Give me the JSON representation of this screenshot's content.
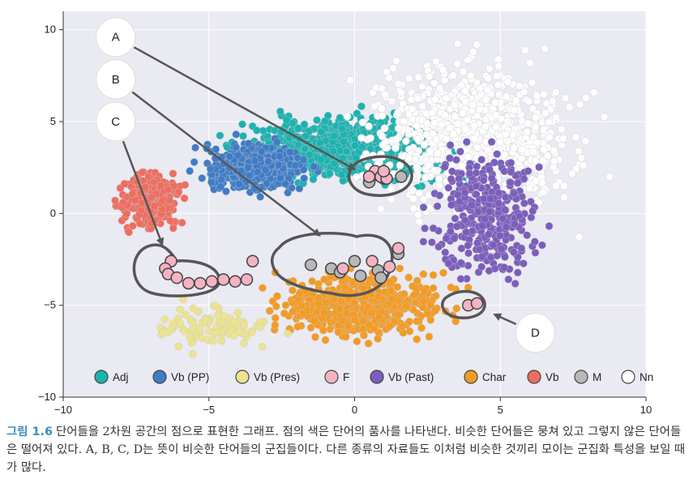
{
  "chart_data": {
    "type": "scatter",
    "title": "",
    "xlabel": "",
    "ylabel": "",
    "xlim": [
      -10,
      10
    ],
    "ylim": [
      -10,
      11
    ],
    "xticks": [
      -10,
      -5,
      0,
      5,
      10
    ],
    "yticks": [
      -10,
      -5,
      0,
      5,
      10
    ],
    "grid": true,
    "legend_position": "bottom",
    "series": [
      {
        "name": "Adj",
        "color": "#1bb3b0"
      },
      {
        "name": "Vb (PP)",
        "color": "#3f7cc6"
      },
      {
        "name": "Vb (Pres)",
        "color": "#ece38f"
      },
      {
        "name": "F",
        "color": "#f3b3c3"
      },
      {
        "name": "Vb (Past)",
        "color": "#7b5ebc"
      },
      {
        "name": "Char",
        "color": "#f39b23"
      },
      {
        "name": "Vb",
        "color": "#ee6d5f"
      },
      {
        "name": "M",
        "color": "#b8b8b8"
      },
      {
        "name": "Nn",
        "color": "#ffffff"
      }
    ],
    "clusters": [
      {
        "name": "Adj",
        "x": [
          -5.5,
          5.5
        ],
        "y": [
          1,
          6
        ],
        "count": 900
      },
      {
        "name": "Vb (PP)",
        "x": [
          -6,
          -1
        ],
        "y": [
          0.5,
          4.5
        ],
        "count": 450
      },
      {
        "name": "Nn",
        "x": [
          -1,
          9
        ],
        "y": [
          -1.5,
          10
        ],
        "count": 1000
      },
      {
        "name": "Vb (Past)",
        "x": [
          2,
          7
        ],
        "y": [
          -5,
          5
        ],
        "count": 350
      },
      {
        "name": "Char",
        "x": [
          -4,
          4.5
        ],
        "y": [
          -7.5,
          -2.5
        ],
        "count": 550
      },
      {
        "name": "Vb",
        "x": [
          -8.5,
          -5.5
        ],
        "y": [
          -1.5,
          3
        ],
        "count": 300
      },
      {
        "name": "Vb (Pres)",
        "x": [
          -8,
          -2
        ],
        "y": [
          -8,
          -4.5
        ],
        "count": 100
      }
    ],
    "callouts": [
      {
        "label": "A",
        "circle_x": -8.2,
        "circle_y": 9.6,
        "target_x": 0,
        "target_y": 2.4,
        "members_F": [
          [
            0.7,
            2.3
          ],
          [
            0.9,
            2.0
          ],
          [
            1.1,
            1.9
          ],
          [
            0.5,
            2.0
          ],
          [
            1.0,
            2.3
          ]
        ],
        "members_M": [
          [
            1.0,
            1.9
          ],
          [
            0.7,
            2.1
          ],
          [
            1.6,
            2.0
          ],
          [
            0.5,
            1.7
          ]
        ]
      },
      {
        "label": "B",
        "circle_x": -8.2,
        "circle_y": 7.3,
        "target_x": -1.2,
        "target_y": -1.2,
        "members_F": [
          [
            -3.5,
            -2.6
          ],
          [
            0.6,
            -2.6
          ],
          [
            1.5,
            -1.9
          ],
          [
            1.2,
            -2.9
          ],
          [
            -0.4,
            -3.0
          ]
        ],
        "members_M": [
          [
            -1.5,
            -2.8
          ],
          [
            -0.8,
            -3.0
          ],
          [
            0,
            -2.6
          ],
          [
            0.8,
            -3.1
          ],
          [
            1.5,
            -2.2
          ],
          [
            0.2,
            -3.4
          ],
          [
            -0.5,
            -3.2
          ],
          [
            0.9,
            -3.5
          ]
        ]
      },
      {
        "label": "C",
        "circle_x": -8.2,
        "circle_y": 5.0,
        "target_x": -6.6,
        "target_y": -1.7,
        "members_F": [
          [
            -6.3,
            -2.6
          ],
          [
            -6.5,
            -3.0
          ],
          [
            -6.4,
            -3.3
          ],
          [
            -6.1,
            -3.5
          ],
          [
            -5.7,
            -3.8
          ],
          [
            -5.3,
            -3.8
          ],
          [
            -4.9,
            -3.7
          ],
          [
            -4.5,
            -3.6
          ],
          [
            -4.1,
            -3.7
          ],
          [
            -3.7,
            -3.6
          ]
        ],
        "members_M": []
      },
      {
        "label": "D",
        "circle_x": 6.2,
        "circle_y": -6.5,
        "target_x": 4.8,
        "target_y": -5.5,
        "members_F": [
          [
            3.9,
            -5.0
          ],
          [
            4.2,
            -4.9
          ]
        ],
        "members_M": []
      }
    ]
  },
  "caption": {
    "label": "그림 1.6",
    "text": "단어들을 2차원 공간의 점으로 표현한 그래프. 점의 색은 단어의 품사를 나타낸다. 비슷한 단어들은 뭉쳐 있고 그렇지 않은 단어들은 떨어져 있다. A, B, C, D는 뜻이 비슷한 단어들의 군집들이다. 다른 종류의 자료들도 이처럼 비슷한 것끼리 모이는 군집화 특성을 보일 때가 많다."
  }
}
